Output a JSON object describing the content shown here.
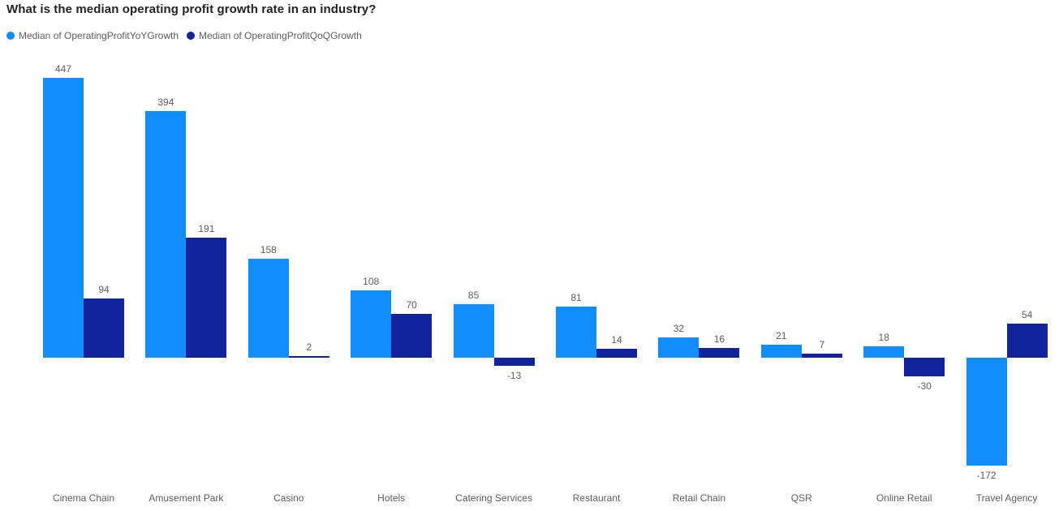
{
  "title": "What is the median operating profit growth rate in an industry?",
  "legend": [
    {
      "label": "Median of OperatingProfitYoYGrowth",
      "color": "#118DFF"
    },
    {
      "label": "Median of OperatingProfitQoQGrowth",
      "color": "#12239E"
    }
  ],
  "colors": {
    "series_yoy": "#118DFF",
    "series_qoq": "#12239E",
    "title_text": "#252423",
    "label_text": "#605E5C",
    "background": "#FFFFFF"
  },
  "chart_data": {
    "type": "bar",
    "title": "What is the median operating profit growth rate in an industry?",
    "categories": [
      "Cinema Chain",
      "Amusement Park",
      "Casino",
      "Hotels",
      "Catering Services",
      "Restaurant",
      "Retail Chain",
      "QSR",
      "Online Retail",
      "Travel Agency"
    ],
    "series": [
      {
        "name": "Median of OperatingProfitYoYGrowth",
        "color": "#118DFF",
        "values": [
          447,
          394,
          158,
          108,
          85,
          81,
          32,
          21,
          18,
          -172
        ]
      },
      {
        "name": "Median of OperatingProfitQoQGrowth",
        "color": "#12239E",
        "values": [
          94,
          191,
          2,
          70,
          -13,
          14,
          16,
          7,
          -30,
          54
        ]
      }
    ],
    "xlabel": "",
    "ylabel": "",
    "ylim": [
      -200,
      470
    ],
    "grid": false,
    "axes_visible": false,
    "data_labels": true,
    "legend_position": "top-left"
  }
}
